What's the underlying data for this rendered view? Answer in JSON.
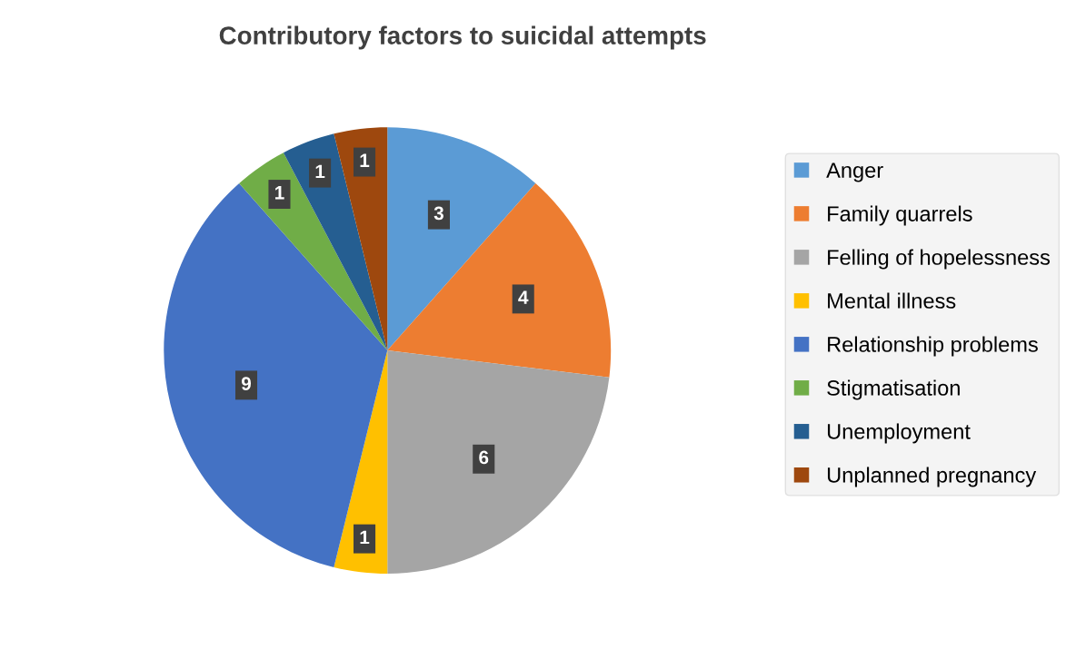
{
  "chart_data": {
    "type": "pie",
    "title": "Contributory factors to suicidal attempts",
    "categories": [
      "Anger",
      "Family quarrels",
      "Felling of hopelessness",
      "Mental illness",
      "Relationship problems",
      "Stigmatisation",
      "Unemployment",
      "Unplanned pregnancy"
    ],
    "values": [
      3,
      4,
      6,
      1,
      9,
      1,
      1,
      1
    ],
    "colors": [
      "#5b9bd5",
      "#ed7d31",
      "#a5a5a5",
      "#ffc000",
      "#4472c4",
      "#70ad47",
      "#255e91",
      "#9e480e"
    ],
    "data_labels": true,
    "legend": "right"
  }
}
